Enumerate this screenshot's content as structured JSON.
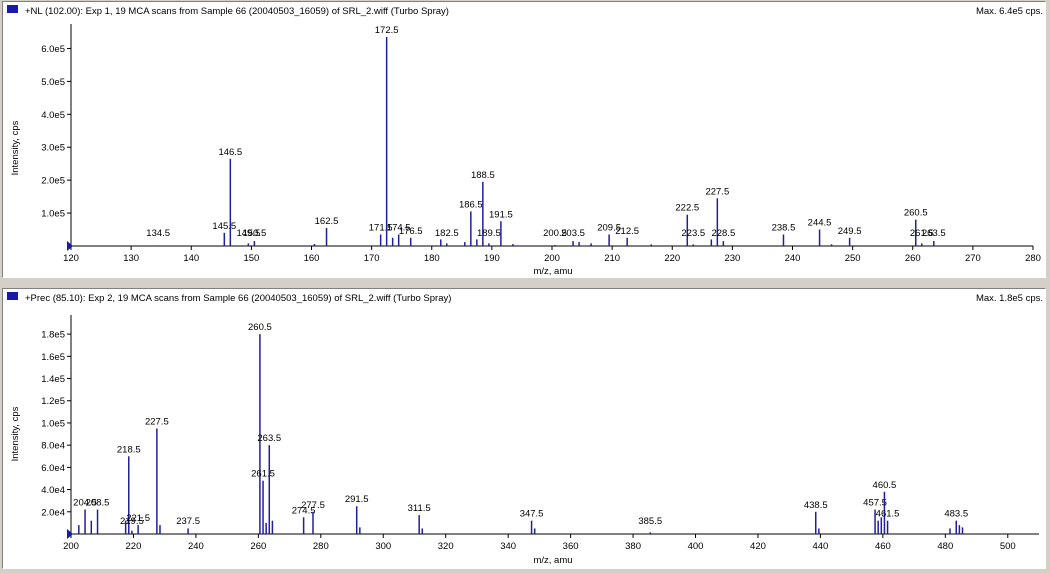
{
  "colors": {
    "peak": "#1f1f9c",
    "marker": "#1a1aa8",
    "background": "#ffffff",
    "frame": "#d4d0c8"
  },
  "icons": {
    "pane_marker": "blue-square-icon",
    "axis_origin": "blue-triangle-icon"
  },
  "chart_data": [
    {
      "type": "bar",
      "title": "+NL (102.00): Exp 1, 19 MCA scans from Sample 66 (20040503_16059) of SRL_2.wiff (Turbo Spray)",
      "max_text": "Max. 6.4e5 cps.",
      "xlabel": "m/z, amu",
      "ylabel": "Intensity, cps",
      "xlim": [
        120,
        280
      ],
      "ylim": [
        0,
        650000
      ],
      "x_ticks": [
        120,
        130,
        140,
        150,
        160,
        170,
        180,
        190,
        200,
        210,
        220,
        230,
        240,
        250,
        260,
        270,
        280
      ],
      "y_ticks": [
        {
          "value": 100000,
          "label": "1.0e5"
        },
        {
          "value": 200000,
          "label": "2.0e5"
        },
        {
          "value": 300000,
          "label": "3.0e5"
        },
        {
          "value": 400000,
          "label": "4.0e5"
        },
        {
          "value": 500000,
          "label": "5.0e5"
        },
        {
          "value": 600000,
          "label": "6.0e5"
        }
      ],
      "peaks": [
        {
          "x": 134.5,
          "y": 2000,
          "label": "134.5"
        },
        {
          "x": 145.5,
          "y": 40000,
          "label": "145.5"
        },
        {
          "x": 146.5,
          "y": 265000,
          "label": "146.5"
        },
        {
          "x": 149.5,
          "y": 8000,
          "label": "149.5"
        },
        {
          "x": 150.5,
          "y": 15000,
          "label": "150.5"
        },
        {
          "x": 160.5,
          "y": 6000,
          "label": ""
        },
        {
          "x": 162.5,
          "y": 55000,
          "label": "162.5"
        },
        {
          "x": 171.5,
          "y": 35000,
          "label": "171.5"
        },
        {
          "x": 172.5,
          "y": 635000,
          "label": "172.5"
        },
        {
          "x": 173.5,
          "y": 25000,
          "label": ""
        },
        {
          "x": 174.5,
          "y": 35000,
          "label": "174.5"
        },
        {
          "x": 176.5,
          "y": 25000,
          "label": "176.5"
        },
        {
          "x": 181.5,
          "y": 20000,
          "label": ""
        },
        {
          "x": 182.5,
          "y": 8000,
          "label": "182.5"
        },
        {
          "x": 185.5,
          "y": 12000,
          "label": ""
        },
        {
          "x": 186.5,
          "y": 105000,
          "label": "186.5"
        },
        {
          "x": 187.5,
          "y": 20000,
          "label": ""
        },
        {
          "x": 188.5,
          "y": 195000,
          "label": "188.5"
        },
        {
          "x": 189.5,
          "y": 8000,
          "label": "189.5"
        },
        {
          "x": 191.5,
          "y": 75000,
          "label": "191.5"
        },
        {
          "x": 193.5,
          "y": 6000,
          "label": ""
        },
        {
          "x": 200.5,
          "y": 3000,
          "label": "200.5"
        },
        {
          "x": 203.5,
          "y": 15000,
          "label": "203.5"
        },
        {
          "x": 204.5,
          "y": 12000,
          "label": ""
        },
        {
          "x": 206.5,
          "y": 8000,
          "label": ""
        },
        {
          "x": 209.5,
          "y": 35000,
          "label": "209.5"
        },
        {
          "x": 212.5,
          "y": 25000,
          "label": "212.5"
        },
        {
          "x": 216.5,
          "y": 5000,
          "label": ""
        },
        {
          "x": 222.5,
          "y": 95000,
          "label": "222.5"
        },
        {
          "x": 223.5,
          "y": 5000,
          "label": "223.5"
        },
        {
          "x": 226.5,
          "y": 20000,
          "label": ""
        },
        {
          "x": 227.5,
          "y": 145000,
          "label": "227.5"
        },
        {
          "x": 228.5,
          "y": 15000,
          "label": "228.5"
        },
        {
          "x": 238.5,
          "y": 35000,
          "label": "238.5"
        },
        {
          "x": 244.5,
          "y": 50000,
          "label": "244.5"
        },
        {
          "x": 246.5,
          "y": 5000,
          "label": ""
        },
        {
          "x": 249.5,
          "y": 25000,
          "label": "249.5"
        },
        {
          "x": 260.5,
          "y": 80000,
          "label": "260.5"
        },
        {
          "x": 261.5,
          "y": 8000,
          "label": "261.5"
        },
        {
          "x": 263.5,
          "y": 15000,
          "label": "263.5"
        }
      ]
    },
    {
      "type": "bar",
      "title": "+Prec (85.10): Exp 2, 19 MCA scans from Sample 66 (20040503_16059) of SRL_2.wiff (Turbo Spray)",
      "max_text": "Max. 1.8e5 cps.",
      "xlabel": "m/z, amu",
      "ylabel": "Intensity, cps",
      "xlim": [
        200,
        510
      ],
      "ylim": [
        0,
        190000
      ],
      "x_ticks": [
        200,
        220,
        240,
        260,
        280,
        300,
        320,
        340,
        360,
        380,
        400,
        420,
        440,
        460,
        480,
        500
      ],
      "y_ticks": [
        {
          "value": 20000,
          "label": "2.0e4"
        },
        {
          "value": 40000,
          "label": "4.0e4"
        },
        {
          "value": 60000,
          "label": "6.0e4"
        },
        {
          "value": 80000,
          "label": "8.0e4"
        },
        {
          "value": 100000,
          "label": "1.0e5"
        },
        {
          "value": 120000,
          "label": "1.2e5"
        },
        {
          "value": 140000,
          "label": "1.4e5"
        },
        {
          "value": 160000,
          "label": "1.6e5"
        },
        {
          "value": 180000,
          "label": "1.8e5"
        }
      ],
      "peaks": [
        {
          "x": 202.5,
          "y": 8000,
          "label": ""
        },
        {
          "x": 204.5,
          "y": 22000,
          "label": "204.5"
        },
        {
          "x": 206.5,
          "y": 12000,
          "label": ""
        },
        {
          "x": 208.5,
          "y": 22000,
          "label": "208.5"
        },
        {
          "x": 217.5,
          "y": 12000,
          "label": ""
        },
        {
          "x": 218.5,
          "y": 70000,
          "label": "218.5"
        },
        {
          "x": 219.5,
          "y": 3000,
          "label": "219.5"
        },
        {
          "x": 221.5,
          "y": 8000,
          "label": "221.5"
        },
        {
          "x": 227.5,
          "y": 95000,
          "label": "227.5"
        },
        {
          "x": 228.5,
          "y": 8000,
          "label": ""
        },
        {
          "x": 237.5,
          "y": 5000,
          "label": "237.5"
        },
        {
          "x": 260.5,
          "y": 180000,
          "label": "260.5"
        },
        {
          "x": 261.5,
          "y": 48000,
          "label": "261.5"
        },
        {
          "x": 262.5,
          "y": 10000,
          "label": ""
        },
        {
          "x": 263.5,
          "y": 80000,
          "label": "263.5"
        },
        {
          "x": 264.5,
          "y": 12000,
          "label": ""
        },
        {
          "x": 274.5,
          "y": 15000,
          "label": "274.5"
        },
        {
          "x": 277.5,
          "y": 20000,
          "label": "277.5"
        },
        {
          "x": 291.5,
          "y": 25000,
          "label": "291.5"
        },
        {
          "x": 292.5,
          "y": 6000,
          "label": ""
        },
        {
          "x": 311.5,
          "y": 17000,
          "label": "311.5"
        },
        {
          "x": 312.5,
          "y": 5000,
          "label": ""
        },
        {
          "x": 347.5,
          "y": 12000,
          "label": "347.5"
        },
        {
          "x": 348.5,
          "y": 5000,
          "label": ""
        },
        {
          "x": 385.5,
          "y": 1500,
          "label": "385.5"
        },
        {
          "x": 438.5,
          "y": 20000,
          "label": "438.5"
        },
        {
          "x": 439.5,
          "y": 5000,
          "label": ""
        },
        {
          "x": 457.5,
          "y": 22000,
          "label": "457.5"
        },
        {
          "x": 458.5,
          "y": 12000,
          "label": ""
        },
        {
          "x": 459.5,
          "y": 15000,
          "label": ""
        },
        {
          "x": 460.5,
          "y": 38000,
          "label": "460.5"
        },
        {
          "x": 461.5,
          "y": 12000,
          "label": "461.5"
        },
        {
          "x": 481.5,
          "y": 5000,
          "label": ""
        },
        {
          "x": 483.5,
          "y": 12000,
          "label": "483.5"
        },
        {
          "x": 484.5,
          "y": 8000,
          "label": ""
        },
        {
          "x": 485.5,
          "y": 6000,
          "label": ""
        }
      ]
    }
  ]
}
